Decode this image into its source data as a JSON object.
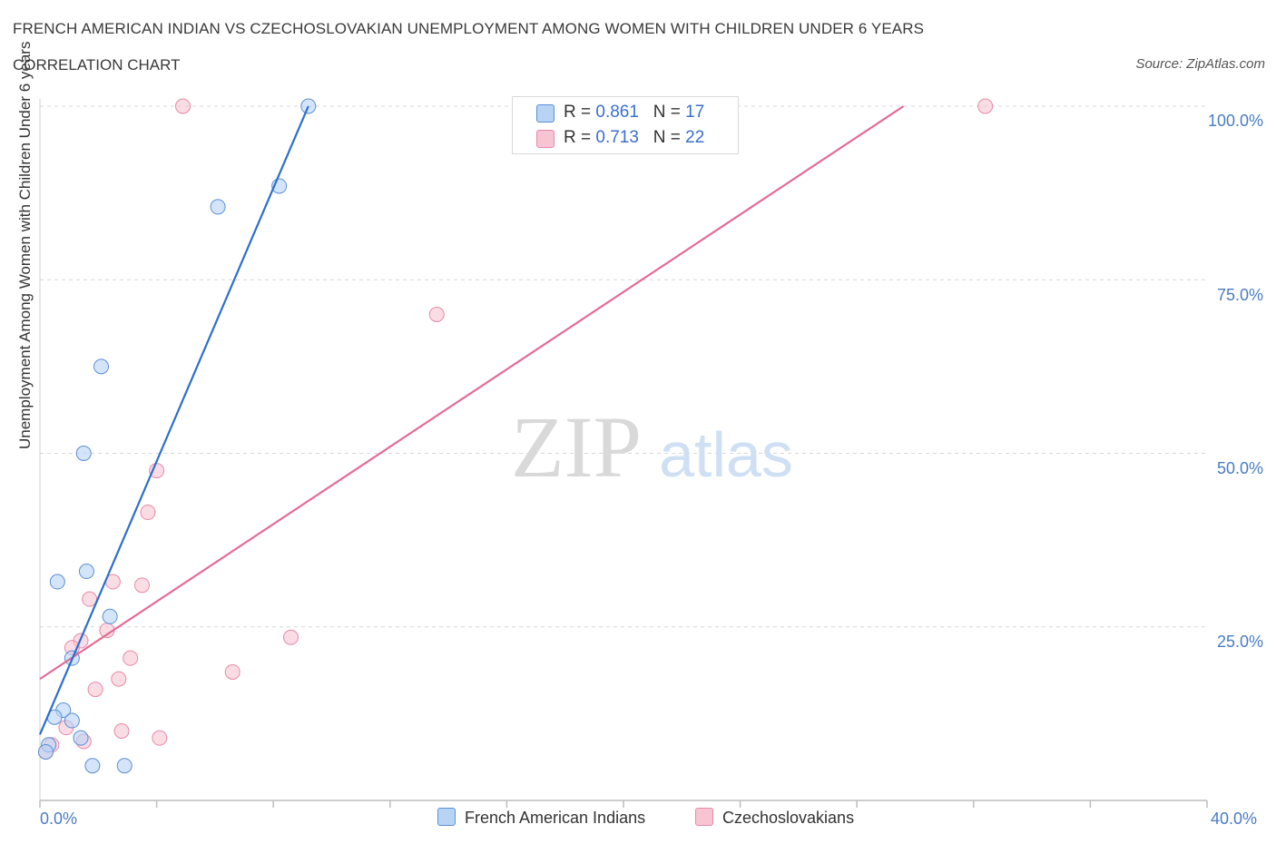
{
  "header": {
    "title": "FRENCH AMERICAN INDIAN VS CZECHOSLOVAKIAN UNEMPLOYMENT AMONG WOMEN WITH CHILDREN UNDER 6 YEARS",
    "subtitle": "CORRELATION CHART",
    "source": "Source: ZipAtlas.com"
  },
  "watermark": {
    "zip": "ZIP",
    "atlas": "atlas"
  },
  "colors": {
    "blue_fill": "#b8d4f5",
    "blue_stroke": "#5b8fd6",
    "blue_line": "#2c6fcc",
    "pink_fill": "#f7c4d4",
    "pink_stroke": "#e88aa8",
    "pink_line": "#e46b93",
    "grid": "#d8d8d8",
    "tick_text": "#4a7cc4"
  },
  "legend": {
    "rows": [
      {
        "r_label": "R = ",
        "r_value": "0.861",
        "n_label": "N = ",
        "n_value": "17"
      },
      {
        "r_label": "R = ",
        "r_value": "0.713",
        "n_label": "N = ",
        "n_value": "22"
      }
    ]
  },
  "chart_data": {
    "type": "scatter",
    "title": "FRENCH AMERICAN INDIAN VS CZECHOSLOVAKIAN UNEMPLOYMENT AMONG WOMEN WITH CHILDREN UNDER 6 YEARS",
    "xlabel": "",
    "ylabel": "Unemployment Among Women with Children Under 6 years",
    "xlim": [
      0,
      40
    ],
    "ylim": [
      0,
      100
    ],
    "x_tick_labels": [
      "0.0%",
      "40.0%"
    ],
    "y_ticks": [
      25,
      50,
      75,
      100
    ],
    "y_tick_labels": [
      "25.0%",
      "50.0%",
      "75.0%",
      "100.0%"
    ],
    "legend_position": "bottom-center",
    "series": [
      {
        "name": "French American Indians",
        "points": [
          [
            9.2,
            100.0
          ],
          [
            8.2,
            88.5
          ],
          [
            6.1,
            85.5
          ],
          [
            2.1,
            62.5
          ],
          [
            1.5,
            50.0
          ],
          [
            1.6,
            33.0
          ],
          [
            0.6,
            31.5
          ],
          [
            2.4,
            26.5
          ],
          [
            1.1,
            20.5
          ],
          [
            0.8,
            13.0
          ],
          [
            1.1,
            11.5
          ],
          [
            0.5,
            12.0
          ],
          [
            1.4,
            9.0
          ],
          [
            0.3,
            8.0
          ],
          [
            0.2,
            7.0
          ],
          [
            1.8,
            5.0
          ],
          [
            2.9,
            5.0
          ]
        ],
        "trend": {
          "x0": 0.0,
          "y0": 9.5,
          "x1": 9.2,
          "y1": 100.0
        }
      },
      {
        "name": "Czechoslovakians",
        "points": [
          [
            4.9,
            100.0
          ],
          [
            32.4,
            100.0
          ],
          [
            13.6,
            70.0
          ],
          [
            4.0,
            47.5
          ],
          [
            3.7,
            41.5
          ],
          [
            2.5,
            31.5
          ],
          [
            3.5,
            31.0
          ],
          [
            1.7,
            29.0
          ],
          [
            8.6,
            23.5
          ],
          [
            1.4,
            23.0
          ],
          [
            2.3,
            24.5
          ],
          [
            1.1,
            22.0
          ],
          [
            3.1,
            20.5
          ],
          [
            6.6,
            18.5
          ],
          [
            2.7,
            17.5
          ],
          [
            1.9,
            16.0
          ],
          [
            0.9,
            10.5
          ],
          [
            2.8,
            10.0
          ],
          [
            4.1,
            9.0
          ],
          [
            1.5,
            8.5
          ],
          [
            0.4,
            8.0
          ],
          [
            0.2,
            7.0
          ]
        ],
        "trend": {
          "x0": 0.0,
          "y0": 17.5,
          "x1": 29.6,
          "y1": 100.0
        }
      }
    ]
  }
}
